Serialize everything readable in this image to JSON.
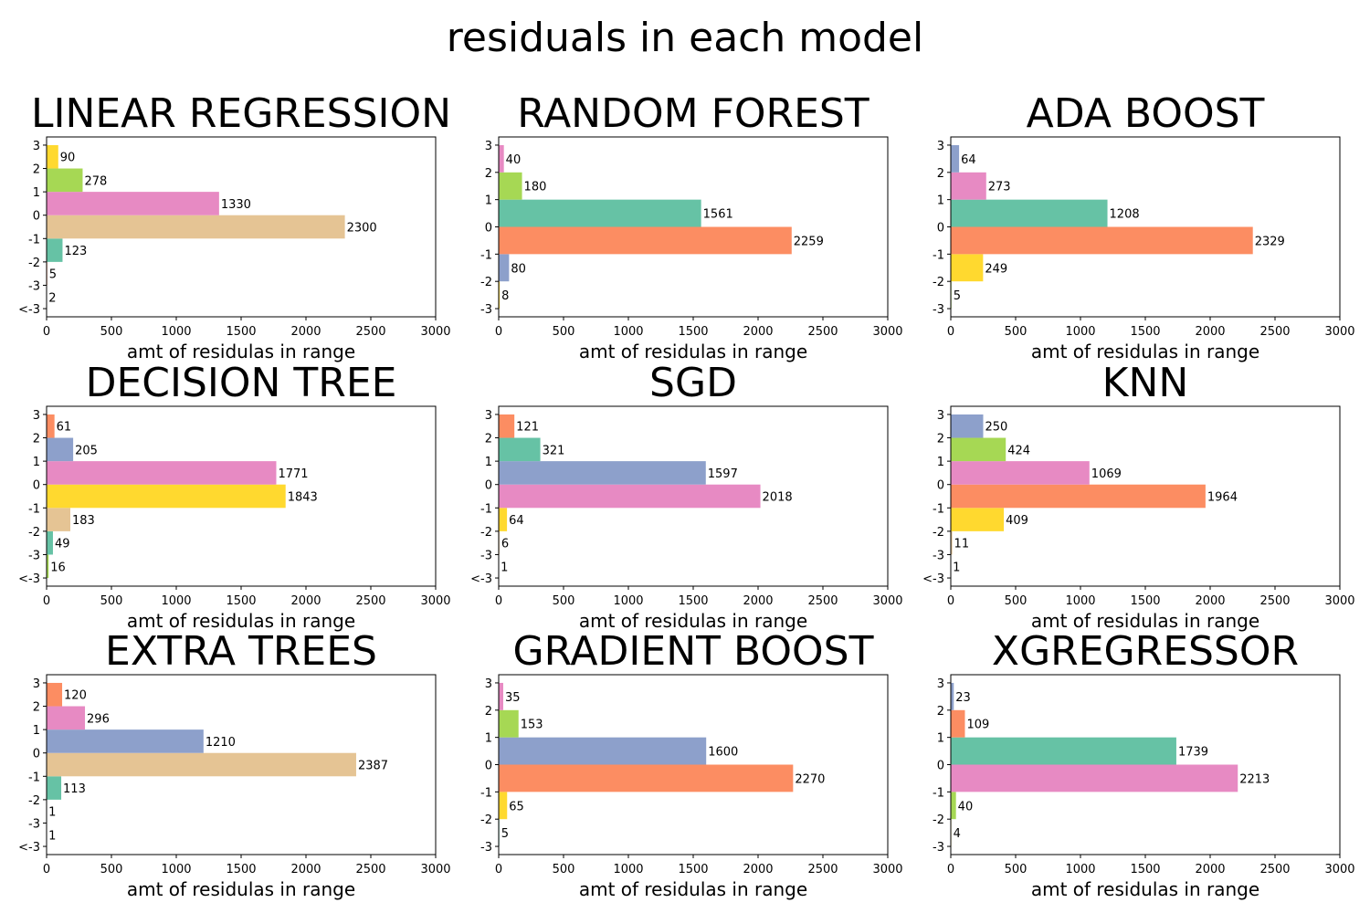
{
  "title": "residuals in each model",
  "chart_data": [
    {
      "type": "histogram",
      "orientation": "horizontal",
      "title": "LINEAR REGRESSION",
      "xlabel": "amt of residulas in range",
      "bins": [
        -4,
        -3,
        -2,
        -1,
        0,
        1,
        2,
        3
      ],
      "values": [
        2,
        5,
        123,
        2300,
        1330,
        278,
        90
      ],
      "colors": [
        "#8da0cb",
        "#fc8d62",
        "#66c2a5",
        "#e5c494",
        "#e78ac3",
        "#a6d854",
        "#ffd92f"
      ],
      "xlim": [
        0,
        3000
      ],
      "xticks": [
        0,
        500,
        1000,
        1500,
        2000,
        2500,
        3000
      ],
      "ylim": [
        -4.35,
        3.35
      ],
      "yticks": [
        {
          "value": -4,
          "label": "<-3"
        },
        -3,
        -2,
        -1,
        0,
        1,
        2,
        3
      ]
    },
    {
      "type": "histogram",
      "orientation": "horizontal",
      "title": "RANDOM FOREST",
      "xlabel": "amt of residulas in range",
      "bins": [
        -3,
        -2,
        -1,
        0,
        1,
        2,
        3
      ],
      "values": [
        8,
        80,
        2259,
        1561,
        180,
        40
      ],
      "colors": [
        "#ffd92f",
        "#8da0cb",
        "#fc8d62",
        "#66c2a5",
        "#a6d854",
        "#e78ac3"
      ],
      "xlim": [
        0,
        3000
      ],
      "xticks": [
        0,
        500,
        1000,
        1500,
        2000,
        2500,
        3000
      ],
      "ylim": [
        -3.3,
        3.3
      ],
      "yticks": [
        -3,
        -2,
        -1,
        0,
        1,
        2,
        3
      ]
    },
    {
      "type": "histogram",
      "orientation": "horizontal",
      "title": "ADA BOOST",
      "xlabel": "amt of residulas in range",
      "bins": [
        -3,
        -2,
        -1,
        0,
        1,
        2,
        3
      ],
      "values": [
        5,
        249,
        2329,
        1208,
        273,
        64
      ],
      "colors": [
        "#a6d854",
        "#ffd92f",
        "#fc8d62",
        "#66c2a5",
        "#e78ac3",
        "#8da0cb"
      ],
      "xlim": [
        0,
        3000
      ],
      "xticks": [
        0,
        500,
        1000,
        1500,
        2000,
        2500,
        3000
      ],
      "ylim": [
        -3.3,
        3.3
      ],
      "yticks": [
        -3,
        -2,
        -1,
        0,
        1,
        2,
        3
      ]
    },
    {
      "type": "histogram",
      "orientation": "horizontal",
      "title": "DECISION TREE",
      "xlabel": "amt of residulas in range",
      "bins": [
        -4,
        -3,
        -2,
        -1,
        0,
        1,
        2,
        3
      ],
      "values": [
        16,
        49,
        183,
        1843,
        1771,
        205,
        61
      ],
      "colors": [
        "#a6d854",
        "#66c2a5",
        "#e5c494",
        "#ffd92f",
        "#e78ac3",
        "#8da0cb",
        "#fc8d62"
      ],
      "xlim": [
        0,
        3000
      ],
      "xticks": [
        0,
        500,
        1000,
        1500,
        2000,
        2500,
        3000
      ],
      "ylim": [
        -4.35,
        3.35
      ],
      "yticks": [
        {
          "value": -4,
          "label": "<-3"
        },
        -3,
        -2,
        -1,
        0,
        1,
        2,
        3
      ]
    },
    {
      "type": "histogram",
      "orientation": "horizontal",
      "title": "SGD",
      "xlabel": "amt of residulas in range",
      "bins": [
        -4,
        -3,
        -2,
        -1,
        0,
        1,
        2,
        3
      ],
      "values": [
        1,
        6,
        64,
        2018,
        1597,
        321,
        121
      ],
      "colors": [
        "#a6d854",
        "#e5c494",
        "#ffd92f",
        "#e78ac3",
        "#8da0cb",
        "#66c2a5",
        "#fc8d62"
      ],
      "xlim": [
        0,
        3000
      ],
      "xticks": [
        0,
        500,
        1000,
        1500,
        2000,
        2500,
        3000
      ],
      "ylim": [
        -4.35,
        3.35
      ],
      "yticks": [
        {
          "value": -4,
          "label": "<-3"
        },
        -3,
        -2,
        -1,
        0,
        1,
        2,
        3
      ]
    },
    {
      "type": "histogram",
      "orientation": "horizontal",
      "title": "KNN",
      "xlabel": "amt of residulas in range",
      "bins": [
        -4,
        -3,
        -2,
        -1,
        0,
        1,
        2,
        3
      ],
      "values": [
        1,
        11,
        409,
        1964,
        1069,
        424,
        250
      ],
      "colors": [
        "#66c2a5",
        "#e5c494",
        "#ffd92f",
        "#fc8d62",
        "#e78ac3",
        "#a6d854",
        "#8da0cb"
      ],
      "xlim": [
        0,
        3000
      ],
      "xticks": [
        0,
        500,
        1000,
        1500,
        2000,
        2500,
        3000
      ],
      "ylim": [
        -4.35,
        3.35
      ],
      "yticks": [
        {
          "value": -4,
          "label": "<-3"
        },
        -3,
        -2,
        -1,
        0,
        1,
        2,
        3
      ]
    },
    {
      "type": "histogram",
      "orientation": "horizontal",
      "title": "EXTRA TREES",
      "xlabel": "amt of residulas in range",
      "bins": [
        -4,
        -3,
        -2,
        -1,
        0,
        1,
        2,
        3
      ],
      "values": [
        1,
        1,
        113,
        2387,
        1210,
        296,
        120
      ],
      "colors": [
        "#a6d854",
        "#ffd92f",
        "#66c2a5",
        "#e5c494",
        "#8da0cb",
        "#e78ac3",
        "#fc8d62"
      ],
      "xlim": [
        0,
        3000
      ],
      "xticks": [
        0,
        500,
        1000,
        1500,
        2000,
        2500,
        3000
      ],
      "ylim": [
        -4.35,
        3.35
      ],
      "yticks": [
        {
          "value": -4,
          "label": "<-3"
        },
        -3,
        -2,
        -1,
        0,
        1,
        2,
        3
      ]
    },
    {
      "type": "histogram",
      "orientation": "horizontal",
      "title": "GRADIENT BOOST",
      "xlabel": "amt of residulas in range",
      "bins": [
        -3,
        -2,
        -1,
        0,
        1,
        2,
        3
      ],
      "values": [
        5,
        65,
        2270,
        1600,
        153,
        35
      ],
      "colors": [
        "#66c2a5",
        "#ffd92f",
        "#fc8d62",
        "#8da0cb",
        "#a6d854",
        "#e78ac3"
      ],
      "xlim": [
        0,
        3000
      ],
      "xticks": [
        0,
        500,
        1000,
        1500,
        2000,
        2500,
        3000
      ],
      "ylim": [
        -3.3,
        3.3
      ],
      "yticks": [
        -3,
        -2,
        -1,
        0,
        1,
        2,
        3
      ]
    },
    {
      "type": "histogram",
      "orientation": "horizontal",
      "title": "XGREGRESSOR",
      "xlabel": "amt of residulas in range",
      "bins": [
        -3,
        -2,
        -1,
        0,
        1,
        2,
        3
      ],
      "values": [
        4,
        40,
        2213,
        1739,
        109,
        23
      ],
      "colors": [
        "#ffd92f",
        "#a6d854",
        "#e78ac3",
        "#66c2a5",
        "#fc8d62",
        "#8da0cb"
      ],
      "xlim": [
        0,
        3000
      ],
      "xticks": [
        0,
        500,
        1000,
        1500,
        2000,
        2500,
        3000
      ],
      "ylim": [
        -3.3,
        3.3
      ],
      "yticks": [
        -3,
        -2,
        -1,
        0,
        1,
        2,
        3
      ]
    }
  ]
}
